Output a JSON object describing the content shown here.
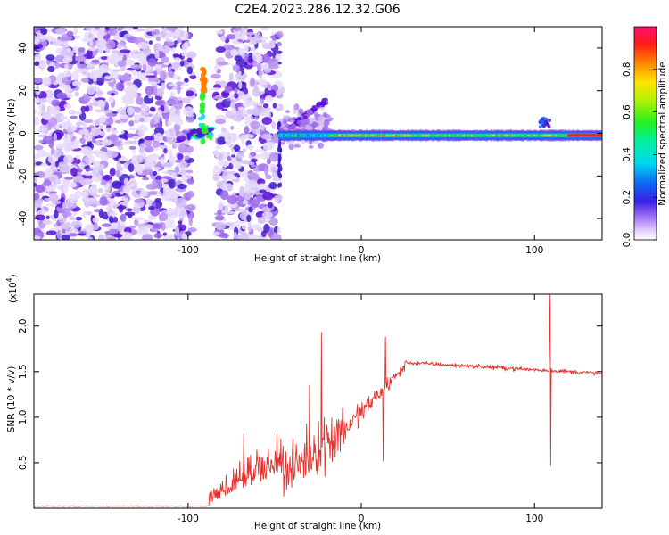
{
  "title": "C2E4.2023.286.12.32.G06",
  "colors": {
    "series_line": "#e8302c",
    "purple_dark": "#5a10d8",
    "purple_light": "#c9a8f5",
    "frame": "#000000"
  },
  "chart_data": [
    {
      "type": "heatmap",
      "title": "C2E4.2023.286.12.32.G06",
      "xlabel": "Height of straight line (km)",
      "ylabel": "Frequency (Hz)",
      "xlim": [
        -189,
        139
      ],
      "ylim": [
        -50,
        50
      ],
      "x_ticks": [
        -100,
        0,
        100
      ],
      "x_tick_labels": [
        "-100",
        "0",
        "100"
      ],
      "y_ticks": [
        -40,
        -20,
        0,
        20,
        40
      ],
      "y_tick_labels": [
        "-40",
        "-20",
        "0",
        "20",
        "40"
      ],
      "colorbar": {
        "label": "Normalized spectral amplitude",
        "range": [
          0.0,
          1.0
        ],
        "ticks": [
          0.0,
          0.2,
          0.4,
          0.6,
          0.8
        ],
        "tick_labels": [
          "0.0",
          "0.2",
          "0.4",
          "0.6",
          "0.8"
        ],
        "colormap": "rainbow (magenta-blue-cyan-green-yellow-red)"
      },
      "features": {
        "noise_region_1": [
          -189,
          -97
        ],
        "gap_without_noise": [
          -97,
          -84
        ],
        "noise_region_2": [
          -84,
          -47
        ],
        "blob_near_x": -92,
        "track_start_x": -47,
        "track_frequency_hz": -1,
        "strong_track_from_x": -18,
        "bump_near_x": 103
      }
    },
    {
      "type": "line",
      "title": "",
      "xlabel": "Height of straight line (km)",
      "ylabel": "SNR (10 * v/v)",
      "y_multiplier_label": "(x10",
      "y_multiplier_exp": "4",
      "xlim": [
        -189,
        139
      ],
      "ylim": [
        0,
        2.35
      ],
      "x_ticks": [
        -100,
        0,
        100
      ],
      "x_tick_labels": [
        "-100",
        "0",
        "100"
      ],
      "y_ticks": [
        0.5,
        1.0,
        1.5,
        2.0
      ],
      "y_tick_labels": [
        "0.5",
        "1.0",
        "1.5",
        "2.0"
      ],
      "series": [
        {
          "values_description": "noisy SNR trace",
          "baseline_low": 0.02,
          "rise_start_x": -88,
          "plateau_value": 1.6,
          "plateau_start_x": 25,
          "end_value": 1.48,
          "max_spike": {
            "x": 109,
            "value": 2.35
          },
          "min_spike": {
            "x": 109,
            "value": 0.47
          },
          "secondary_peaks": [
            {
              "x": -23,
              "value": 1.93
            },
            {
              "x": 14,
              "value": 1.88
            },
            {
              "x": -68,
              "value": 0.82
            },
            {
              "x": -30,
              "value": 1.35
            }
          ]
        }
      ]
    }
  ]
}
